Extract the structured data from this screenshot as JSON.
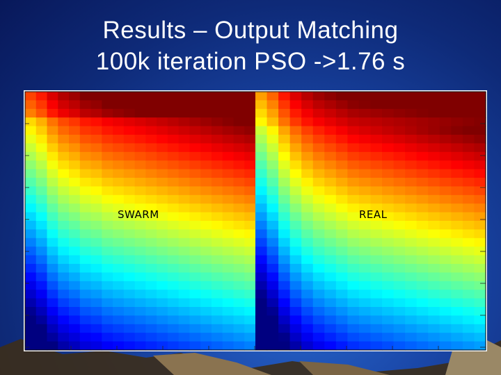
{
  "slide": {
    "title_line_1": "Results – Output Matching",
    "title_line_2": "100k iteration PSO ->1.76 s"
  },
  "plot": {
    "left_label": "SWARM",
    "right_label": "REAL",
    "colormap": "jet",
    "frame_color": "#ffffff"
  },
  "colors": {
    "background_top": "#08185a",
    "background_glow": "#2a6ad0",
    "terrain": "#6b5a3a"
  }
}
